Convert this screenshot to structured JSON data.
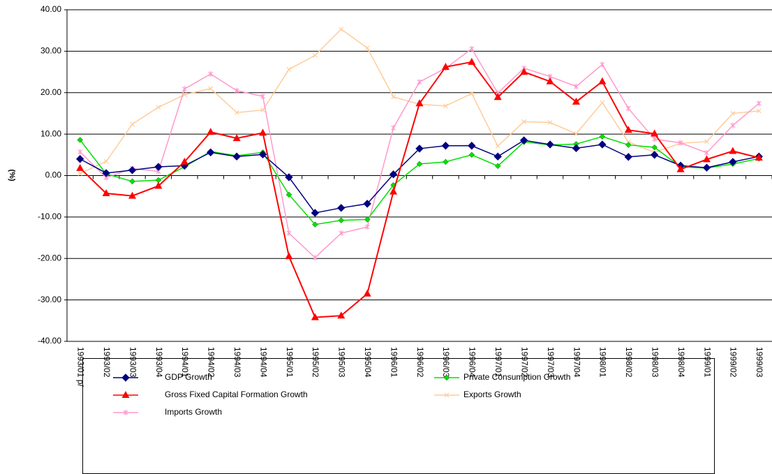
{
  "chart_data": {
    "type": "line",
    "y_label": "(%)",
    "categories": [
      "1993/01 p/",
      "1993/02",
      "1993/03",
      "1993/04",
      "1994/01",
      "1994/02",
      "1994/03",
      "1994/04",
      "1995/01",
      "1995/02",
      "1995/03",
      "1995/04",
      "1996/01",
      "1996/02",
      "1996/03",
      "1996/04",
      "1997/01",
      "1997/02",
      "1997/03",
      "1997/04",
      "1998/01",
      "1998/02",
      "1998/03",
      "1998/04",
      "1999/01",
      "1999/02",
      "1999/03"
    ],
    "ylim": [
      -40,
      40
    ],
    "yticks": [
      {
        "value": -40,
        "label": "-40.00"
      },
      {
        "value": -30,
        "label": "-30.00"
      },
      {
        "value": -20,
        "label": "-20.00"
      },
      {
        "value": -10,
        "label": "-10.00"
      },
      {
        "value": 0,
        "label": "0.00"
      },
      {
        "value": 10,
        "label": "10.00"
      },
      {
        "value": 20,
        "label": "20.00"
      },
      {
        "value": 30,
        "label": "30.00"
      },
      {
        "value": 40,
        "label": "40.00"
      }
    ],
    "grid": true,
    "legend_position": "bottom",
    "series": [
      {
        "name": "GDP Growth",
        "color": "#000080",
        "marker": "diamond",
        "values": [
          4.0,
          0.6,
          1.3,
          2.1,
          2.4,
          5.6,
          4.6,
          5.1,
          -0.4,
          -9.0,
          -7.8,
          -6.8,
          0.3,
          6.5,
          7.2,
          7.2,
          4.6,
          8.5,
          7.5,
          6.6,
          7.5,
          4.5,
          5.0,
          2.4,
          1.9,
          3.3,
          4.6
        ]
      },
      {
        "name": "Private Consumption Growth",
        "color": "#00e000",
        "marker": "small-diamond",
        "values": [
          8.6,
          0.4,
          -1.4,
          -1.1,
          2.1,
          5.8,
          4.8,
          5.6,
          -4.6,
          -11.8,
          -10.8,
          -10.6,
          -2.3,
          2.8,
          3.3,
          5.0,
          2.3,
          8.1,
          7.4,
          7.6,
          9.4,
          7.4,
          6.8,
          2.1,
          1.8,
          2.8,
          4.1
        ]
      },
      {
        "name": "Gross Fixed Capital Formation Growth",
        "color": "#ff0000",
        "marker": "triangle",
        "values": [
          1.8,
          -4.3,
          -4.9,
          -2.5,
          3.3,
          10.5,
          9.0,
          10.3,
          -19.5,
          -34.2,
          -33.8,
          -28.5,
          -3.9,
          17.4,
          26.2,
          27.4,
          18.9,
          25.0,
          22.7,
          17.8,
          22.7,
          11.0,
          10.1,
          1.5,
          3.9,
          5.9,
          4.3
        ]
      },
      {
        "name": "Exports Growth",
        "color": "#ffcc99",
        "marker": "x",
        "values": [
          0.5,
          3.4,
          12.4,
          16.5,
          19.5,
          21.0,
          15.2,
          15.8,
          25.6,
          29.0,
          35.3,
          30.8,
          19.0,
          17.2,
          16.8,
          19.8,
          7.1,
          13.0,
          12.8,
          10.1,
          17.6,
          8.1,
          5.6,
          7.8,
          8.2,
          15.0,
          15.6
        ]
      },
      {
        "name": "Imports Growth",
        "color": "#ff99cc",
        "marker": "star",
        "values": [
          5.7,
          -0.5,
          1.7,
          1.0,
          20.9,
          24.5,
          20.5,
          19.1,
          -13.9,
          -19.8,
          -13.9,
          -12.4,
          11.5,
          22.6,
          25.9,
          30.6,
          19.9,
          25.9,
          23.9,
          21.5,
          26.8,
          16.2,
          8.8,
          7.9,
          5.5,
          12.1,
          17.4
        ]
      }
    ]
  }
}
